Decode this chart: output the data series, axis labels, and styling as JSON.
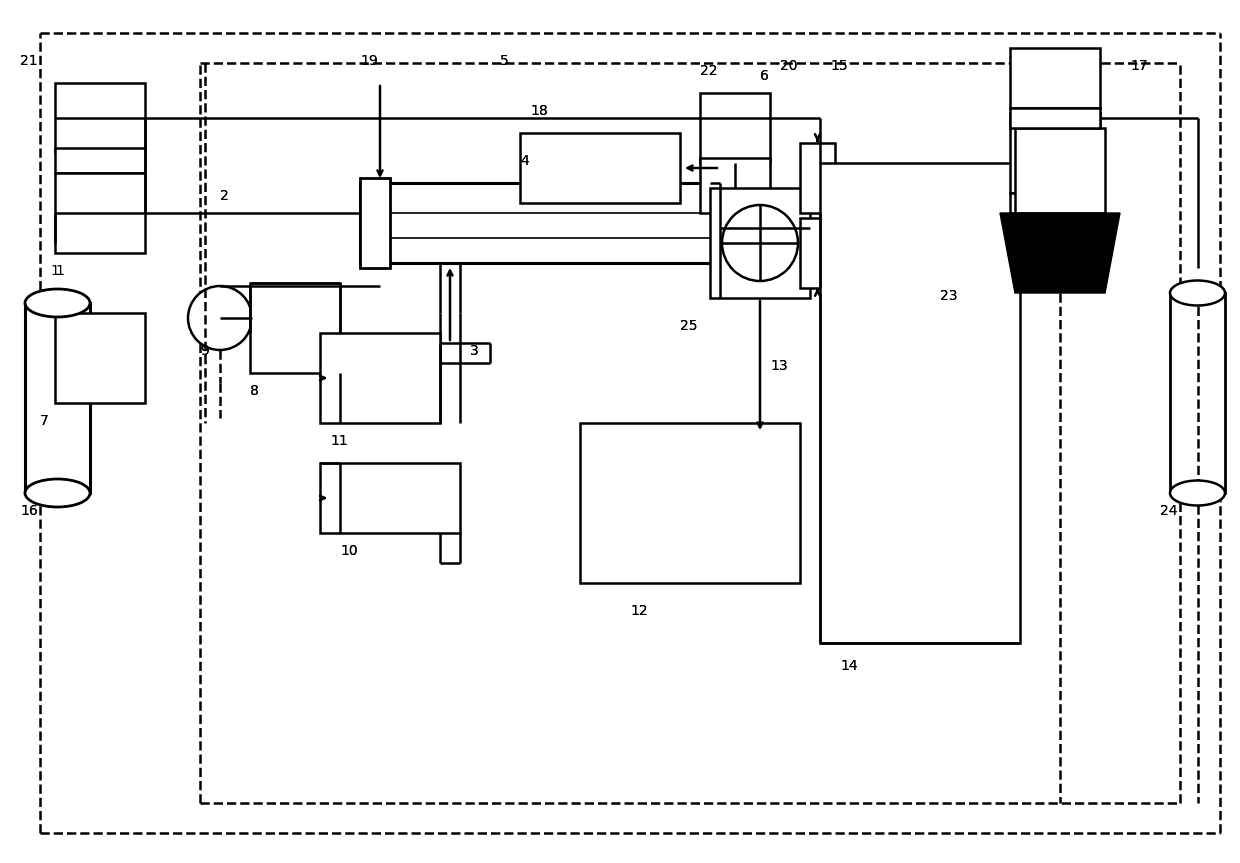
{
  "bg": "#ffffff",
  "lc": "#000000",
  "lw": 1.8,
  "figsize": [
    12.4,
    8.63
  ],
  "dpi": 100,
  "xlim": [
    0,
    124
  ],
  "ylim": [
    0,
    86.3
  ]
}
